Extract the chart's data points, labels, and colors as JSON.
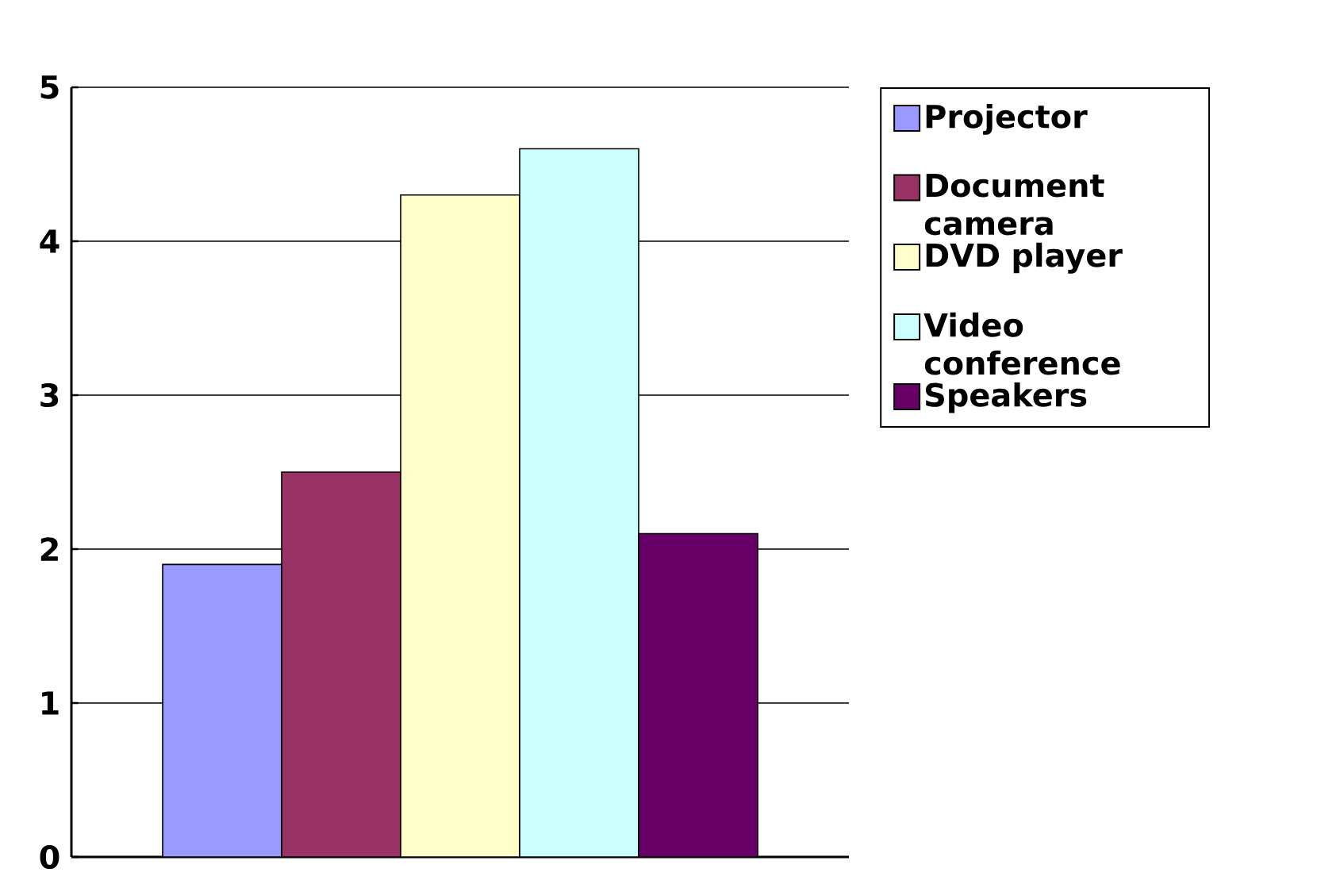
{
  "chart_data": {
    "type": "bar",
    "categories": [
      null
    ],
    "series": [
      {
        "name": "Projector",
        "color": "#9999ff",
        "values": [
          1.9
        ]
      },
      {
        "name": "Document camera",
        "color": "#993366",
        "values": [
          2.5
        ]
      },
      {
        "name": "DVD player",
        "color": "#ffffcc",
        "values": [
          4.3
        ]
      },
      {
        "name": "Video conference",
        "color": "#ccffff",
        "values": [
          4.6
        ]
      },
      {
        "name": "Speakers",
        "color": "#660066",
        "values": [
          2.1
        ]
      }
    ],
    "ylim": [
      0,
      5
    ],
    "yticks": [
      0,
      1,
      2,
      3,
      4,
      5
    ],
    "grid": "y",
    "legend": "right",
    "tick_labels": "y"
  }
}
